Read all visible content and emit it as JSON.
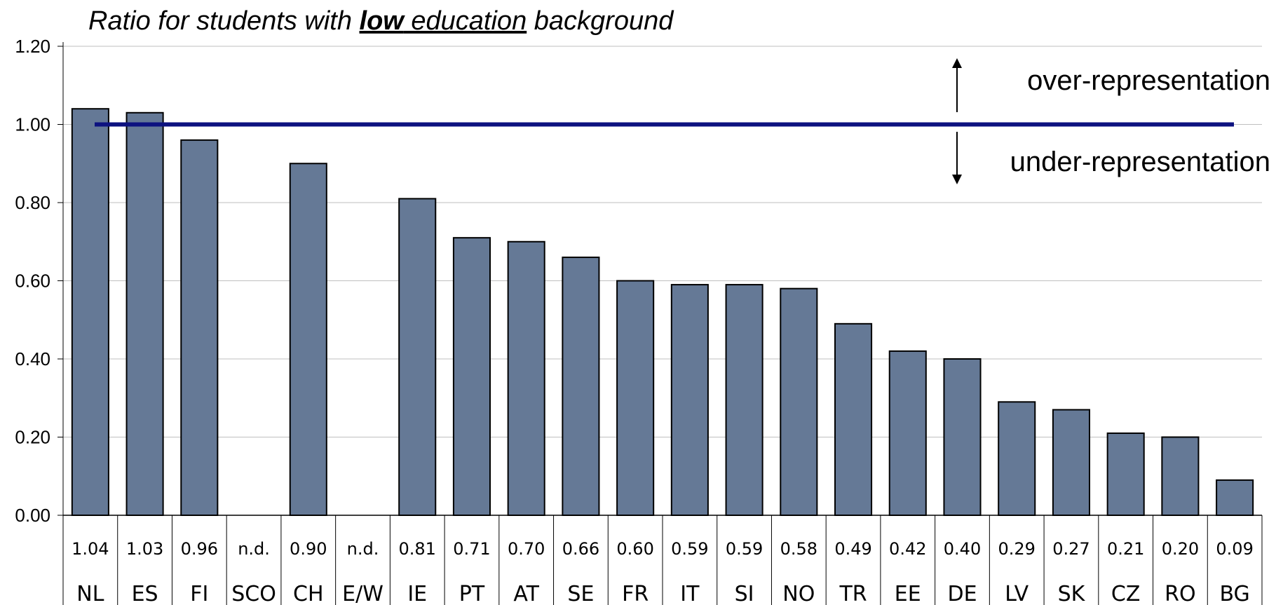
{
  "chart_data": {
    "type": "bar",
    "title": {
      "prefix": "Ratio for students with ",
      "emphasis": "low",
      "underlined": " education",
      "suffix": " background"
    },
    "categories": [
      "NL",
      "ES",
      "FI",
      "SCO",
      "CH",
      "E/W",
      "IE",
      "PT",
      "AT",
      "SE",
      "FR",
      "IT",
      "SI",
      "NO",
      "TR",
      "EE",
      "DE",
      "LV",
      "SK",
      "CZ",
      "RO",
      "BG"
    ],
    "values": [
      1.04,
      1.03,
      0.96,
      null,
      0.9,
      null,
      0.81,
      0.71,
      0.7,
      0.66,
      0.6,
      0.59,
      0.59,
      0.58,
      0.49,
      0.42,
      0.4,
      0.29,
      0.27,
      0.21,
      0.2,
      0.09
    ],
    "value_labels": [
      "1.04",
      "1.03",
      "0.96",
      "n.d.",
      "0.90",
      "n.d.",
      "0.81",
      "0.71",
      "0.70",
      "0.66",
      "0.60",
      "0.59",
      "0.59",
      "0.58",
      "0.49",
      "0.42",
      "0.40",
      "0.29",
      "0.27",
      "0.21",
      "0.20",
      "0.09"
    ],
    "ylim": [
      0,
      1.2
    ],
    "yticks": [
      "0.00",
      "0.20",
      "0.40",
      "0.60",
      "0.80",
      "1.00",
      "1.20"
    ],
    "grid": true,
    "reference_line": {
      "value": 1.0,
      "color": "#0d1280"
    },
    "annotations": {
      "over": "over-representation",
      "under": "under-representation"
    },
    "colors": {
      "bar": "#657996",
      "bar_edge": "#000000",
      "grid": "#bfbfbf"
    }
  }
}
